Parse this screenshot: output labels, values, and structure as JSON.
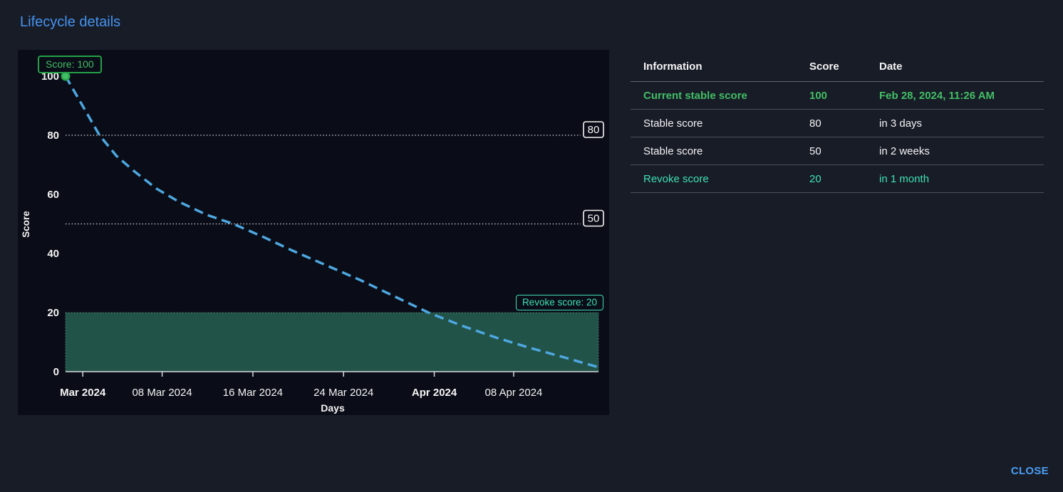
{
  "dialog": {
    "title": "Lifecycle details"
  },
  "footer": {
    "close_label": "CLOSE"
  },
  "table": {
    "columns": [
      "Information",
      "Score",
      "Date"
    ],
    "rows": [
      {
        "info": "Current stable score",
        "score": "100",
        "date": "Feb 28, 2024, 11:26 AM"
      },
      {
        "info": "Stable score",
        "score": "80",
        "date": "in 3 days"
      },
      {
        "info": "Stable score",
        "score": "50",
        "date": "in 2 weeks"
      },
      {
        "info": "Revoke score",
        "score": "20",
        "date": "in 1 month"
      }
    ]
  },
  "chart_data": {
    "type": "line",
    "title": "",
    "xlabel": "Days",
    "ylabel": "Score",
    "x_unit": "days since Feb 28, 2024 11:26 AM",
    "xlim_days": [
      0,
      47
    ],
    "ylim": [
      0,
      100
    ],
    "grid": false,
    "y_ticks": [
      0,
      20,
      40,
      60,
      80,
      100
    ],
    "x_ticks": [
      {
        "label": "Mar 2024",
        "day": 1.52,
        "bold": true
      },
      {
        "label": "08 Mar 2024",
        "day": 8.52,
        "bold": false
      },
      {
        "label": "16 Mar 2024",
        "day": 16.52,
        "bold": false
      },
      {
        "label": "24 Mar 2024",
        "day": 24.52,
        "bold": false
      },
      {
        "label": "Apr 2024",
        "day": 32.52,
        "bold": true
      },
      {
        "label": "08 Apr 2024",
        "day": 39.52,
        "bold": false
      }
    ],
    "series": [
      {
        "name": "score-decay",
        "style": "dashed",
        "color": "#4da7e0",
        "points": [
          [
            0,
            100
          ],
          [
            1.5,
            90
          ],
          [
            3,
            80
          ],
          [
            4.5,
            73
          ],
          [
            6,
            68
          ],
          [
            8,
            62
          ],
          [
            10,
            57.5
          ],
          [
            12.5,
            53
          ],
          [
            14.8,
            50
          ],
          [
            17.5,
            45.5
          ],
          [
            20,
            41
          ],
          [
            23,
            36
          ],
          [
            26,
            31
          ],
          [
            29,
            25.5
          ],
          [
            32,
            20
          ],
          [
            35,
            15.5
          ],
          [
            38,
            11.5
          ],
          [
            41,
            8
          ],
          [
            44,
            4.8
          ],
          [
            47,
            1.5
          ]
        ]
      }
    ],
    "thresholds": [
      {
        "value": 80,
        "label": "80"
      },
      {
        "value": 50,
        "label": "50"
      }
    ],
    "revoke_region": {
      "from": 0,
      "to": 20,
      "label": "Revoke score: 20"
    },
    "start_point": {
      "day": 0,
      "score": 100,
      "label": "Score: 100"
    },
    "colors": {
      "chart_bg": "#0a0d17",
      "curve": "#4da7e0",
      "region_fill": "#225349",
      "region_edge": "#9adbc8",
      "threshold_line": "#cfd2d8",
      "axis": "#d8dade",
      "text": "#f4f4f4",
      "start_dot_fill": "#42be65",
      "start_dot_edge": "#24a148",
      "accent_green": "#42be65",
      "accent_mint": "#3fe0b2",
      "accent_blue": "#4494f0"
    }
  }
}
